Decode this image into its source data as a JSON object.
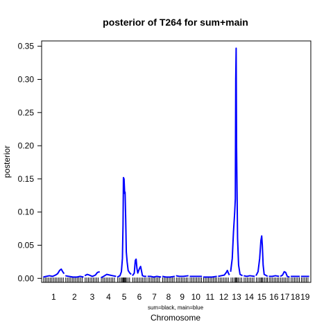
{
  "chart_data": {
    "type": "line",
    "title": "posterior of T264 for sum+main",
    "xlabel": "Chromosome",
    "ylabel": "posterior",
    "legend_note": "sum=black, main=blue",
    "ylim": [
      -0.006,
      0.358
    ],
    "yticks": [
      0.0,
      0.05,
      0.1,
      0.15,
      0.2,
      0.25,
      0.3,
      0.35
    ],
    "ytick_labels": [
      "0.00",
      "0.05",
      "0.10",
      "0.15",
      "0.20",
      "0.25",
      "0.30",
      "0.35"
    ],
    "grid": false,
    "colors": {
      "main": "#0000ff",
      "sum": "#000000",
      "axis": "#000000"
    },
    "chromosomes": [
      {
        "label": "1",
        "start": 0.0,
        "end": 10.2
      },
      {
        "label": "2",
        "start": 10.8,
        "end": 19.7
      },
      {
        "label": "3",
        "start": 20.3,
        "end": 27.6
      },
      {
        "label": "4",
        "start": 28.2,
        "end": 35.6
      },
      {
        "label": "5",
        "start": 36.2,
        "end": 43.0
      },
      {
        "label": "6",
        "start": 43.6,
        "end": 50.4
      },
      {
        "label": "7",
        "start": 51.0,
        "end": 57.6
      },
      {
        "label": "8",
        "start": 58.2,
        "end": 64.3
      },
      {
        "label": "9",
        "start": 64.9,
        "end": 71.0
      },
      {
        "label": "10",
        "start": 71.6,
        "end": 77.6
      },
      {
        "label": "11",
        "start": 78.2,
        "end": 84.9
      },
      {
        "label": "12",
        "start": 85.5,
        "end": 91.0
      },
      {
        "label": "13",
        "start": 91.6,
        "end": 97.4
      },
      {
        "label": "14",
        "start": 98.0,
        "end": 103.4
      },
      {
        "label": "15",
        "start": 104.0,
        "end": 109.7
      },
      {
        "label": "16",
        "start": 110.3,
        "end": 115.3
      },
      {
        "label": "17",
        "start": 115.9,
        "end": 120.4
      },
      {
        "label": "18",
        "start": 121.0,
        "end": 125.4
      },
      {
        "label": "19",
        "start": 126.0,
        "end": 130.0
      }
    ],
    "xlim": [
      -0.8,
      130.8
    ],
    "series": [
      {
        "key": "main",
        "segments": [
          {
            "chromosome": "1",
            "points": [
              [
                0.0,
                0.002
              ],
              [
                1.5,
                0.003
              ],
              [
                3.0,
                0.004
              ],
              [
                4.5,
                0.003
              ],
              [
                6.0,
                0.005
              ],
              [
                7.0,
                0.007
              ],
              [
                8.0,
                0.012
              ],
              [
                8.8,
                0.014
              ],
              [
                9.5,
                0.01
              ],
              [
                10.2,
                0.007
              ]
            ]
          },
          {
            "chromosome": "2",
            "points": [
              [
                10.8,
                0.004
              ],
              [
                12.5,
                0.003
              ],
              [
                14.5,
                0.002
              ],
              [
                16.5,
                0.002
              ],
              [
                18.0,
                0.003
              ],
              [
                19.7,
                0.002
              ]
            ]
          },
          {
            "chromosome": "3",
            "points": [
              [
                20.3,
                0.004
              ],
              [
                21.5,
                0.006
              ],
              [
                22.5,
                0.005
              ],
              [
                24.0,
                0.003
              ],
              [
                25.5,
                0.005
              ],
              [
                26.5,
                0.009
              ],
              [
                27.6,
                0.01
              ]
            ]
          },
          {
            "chromosome": "4",
            "points": [
              [
                28.2,
                0.001
              ],
              [
                29.5,
                0.003
              ],
              [
                31.0,
                0.006
              ],
              [
                32.5,
                0.005
              ],
              [
                34.0,
                0.004
              ],
              [
                35.6,
                0.003
              ]
            ]
          },
          {
            "chromosome": "5",
            "points": [
              [
                36.2,
                0.002
              ],
              [
                37.5,
                0.004
              ],
              [
                38.2,
                0.01
              ],
              [
                38.7,
                0.03
              ],
              [
                39.0,
                0.08
              ],
              [
                39.2,
                0.152
              ],
              [
                39.5,
                0.15
              ],
              [
                39.8,
                0.128
              ],
              [
                40.0,
                0.13
              ],
              [
                40.3,
                0.09
              ],
              [
                40.6,
                0.04
              ],
              [
                41.0,
                0.025
              ],
              [
                41.5,
                0.012
              ],
              [
                42.3,
                0.008
              ],
              [
                43.0,
                0.006
              ]
            ]
          },
          {
            "chromosome": "6",
            "points": [
              [
                43.6,
                0.004
              ],
              [
                44.5,
                0.008
              ],
              [
                45.0,
                0.027
              ],
              [
                45.4,
                0.029
              ],
              [
                45.8,
                0.015
              ],
              [
                46.2,
                0.008
              ],
              [
                46.8,
                0.013
              ],
              [
                47.2,
                0.016
              ],
              [
                47.6,
                0.018
              ],
              [
                48.5,
                0.004
              ],
              [
                49.5,
                0.003
              ],
              [
                50.4,
                0.003
              ]
            ]
          },
          {
            "chromosome": "7",
            "points": [
              [
                51.0,
                0.003
              ],
              [
                52.5,
                0.003
              ],
              [
                54.0,
                0.002
              ],
              [
                55.5,
                0.003
              ],
              [
                57.6,
                0.002
              ]
            ]
          },
          {
            "chromosome": "8",
            "points": [
              [
                58.2,
                0.003
              ],
              [
                60.0,
                0.002
              ],
              [
                62.0,
                0.002
              ],
              [
                64.3,
                0.003
              ]
            ]
          },
          {
            "chromosome": "9",
            "points": [
              [
                64.9,
                0.004
              ],
              [
                66.5,
                0.003
              ],
              [
                68.5,
                0.003
              ],
              [
                71.0,
                0.004
              ]
            ]
          },
          {
            "chromosome": "10",
            "points": [
              [
                71.6,
                0.003
              ],
              [
                73.5,
                0.003
              ],
              [
                75.5,
                0.003
              ],
              [
                77.6,
                0.003
              ]
            ]
          },
          {
            "chromosome": "11",
            "points": [
              [
                78.2,
                0.002
              ],
              [
                80.5,
                0.002
              ],
              [
                82.5,
                0.002
              ],
              [
                84.9,
                0.003
              ]
            ]
          },
          {
            "chromosome": "12",
            "points": [
              [
                85.5,
                0.003
              ],
              [
                87.0,
                0.004
              ],
              [
                88.5,
                0.005
              ],
              [
                89.5,
                0.009
              ],
              [
                90.0,
                0.012
              ],
              [
                90.5,
                0.008
              ],
              [
                91.0,
                0.005
              ]
            ]
          },
          {
            "chromosome": "13",
            "points": [
              [
                91.6,
                0.01
              ],
              [
                92.4,
                0.03
              ],
              [
                93.0,
                0.07
              ],
              [
                93.6,
                0.1
              ],
              [
                93.9,
                0.12
              ],
              [
                94.1,
                0.3
              ],
              [
                94.3,
                0.347
              ],
              [
                94.5,
                0.2
              ],
              [
                94.7,
                0.142
              ],
              [
                95.0,
                0.06
              ],
              [
                95.5,
                0.02
              ],
              [
                96.2,
                0.006
              ],
              [
                97.4,
                0.004
              ]
            ]
          },
          {
            "chromosome": "14",
            "points": [
              [
                98.0,
                0.004
              ],
              [
                99.5,
                0.003
              ],
              [
                101.0,
                0.004
              ],
              [
                103.4,
                0.003
              ]
            ]
          },
          {
            "chromosome": "15",
            "points": [
              [
                104.0,
                0.004
              ],
              [
                105.0,
                0.01
              ],
              [
                105.8,
                0.03
              ],
              [
                106.4,
                0.057
              ],
              [
                106.8,
                0.064
              ],
              [
                107.1,
                0.05
              ],
              [
                107.5,
                0.02
              ],
              [
                108.0,
                0.006
              ],
              [
                109.7,
                0.003
              ]
            ]
          },
          {
            "chromosome": "16",
            "points": [
              [
                110.3,
                0.003
              ],
              [
                112.0,
                0.003
              ],
              [
                113.5,
                0.004
              ],
              [
                115.3,
                0.003
              ]
            ]
          },
          {
            "chromosome": "17",
            "points": [
              [
                115.9,
                0.003
              ],
              [
                117.0,
                0.005
              ],
              [
                117.8,
                0.01
              ],
              [
                118.5,
                0.009
              ],
              [
                119.3,
                0.003
              ],
              [
                120.4,
                0.002
              ]
            ]
          },
          {
            "chromosome": "18",
            "points": [
              [
                121.0,
                0.003
              ],
              [
                123.0,
                0.003
              ],
              [
                125.4,
                0.003
              ]
            ]
          },
          {
            "chromosome": "19",
            "points": [
              [
                126.0,
                0.003
              ],
              [
                128.0,
                0.003
              ],
              [
                130.0,
                0.003
              ]
            ]
          }
        ]
      }
    ],
    "marker_positions": [
      0.2,
      1.0,
      1.8,
      2.6,
      3.4,
      4.2,
      5.0,
      5.8,
      6.6,
      7.4,
      8.2,
      9.0,
      9.8,
      11.0,
      11.8,
      12.6,
      13.4,
      14.2,
      15.0,
      15.8,
      16.6,
      17.4,
      18.2,
      19.0,
      20.5,
      21.3,
      22.1,
      22.9,
      23.7,
      24.5,
      25.3,
      26.1,
      26.9,
      28.4,
      29.2,
      30.0,
      30.8,
      31.6,
      32.4,
      33.2,
      34.0,
      34.8,
      36.4,
      37.2,
      38.0,
      38.6,
      39.0,
      39.4,
      39.8,
      40.2,
      40.6,
      41.4,
      42.2,
      43.8,
      44.6,
      45.4,
      46.2,
      47.0,
      47.8,
      48.6,
      49.4,
      50.2,
      51.2,
      52.0,
      52.8,
      53.6,
      54.4,
      55.2,
      56.0,
      56.8,
      58.4,
      59.2,
      60.0,
      60.8,
      61.6,
      62.4,
      63.2,
      64.0,
      65.1,
      65.9,
      66.7,
      67.5,
      68.3,
      69.1,
      69.9,
      70.7,
      71.8,
      72.6,
      73.4,
      74.2,
      75.0,
      75.8,
      76.6,
      77.4,
      78.4,
      79.2,
      80.0,
      80.8,
      81.6,
      82.4,
      83.2,
      84.0,
      84.7,
      85.7,
      86.5,
      87.3,
      88.1,
      88.9,
      89.7,
      90.5,
      91.8,
      92.6,
      93.4,
      94.0,
      94.4,
      94.8,
      95.4,
      96.2,
      97.0,
      98.2,
      99.0,
      99.8,
      100.6,
      101.4,
      102.2,
      103.0,
      104.2,
      105.0,
      105.8,
      106.4,
      106.9,
      107.4,
      108.2,
      109.0,
      109.6,
      110.5,
      111.3,
      112.1,
      112.9,
      113.7,
      114.5,
      115.2,
      116.1,
      116.9,
      117.7,
      118.5,
      119.3,
      120.1,
      121.2,
      122.0,
      122.8,
      123.6,
      124.4,
      125.2,
      126.2,
      127.0,
      127.8,
      128.6,
      129.4
    ]
  }
}
